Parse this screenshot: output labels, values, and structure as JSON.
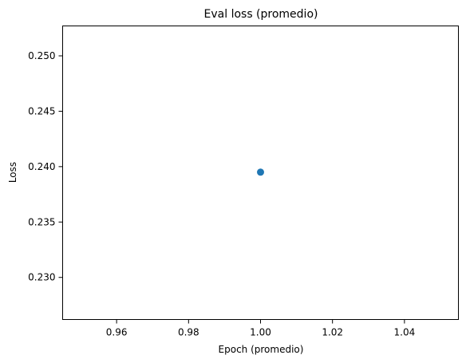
{
  "chart_data": {
    "type": "scatter",
    "title": "Eval loss (promedio)",
    "xlabel": "Epoch (promedio)",
    "ylabel": "Loss",
    "xlim": [
      0.945,
      1.055
    ],
    "ylim": [
      0.2262,
      0.2527
    ],
    "xticks": [
      0.96,
      0.98,
      1.0,
      1.02,
      1.04
    ],
    "xtick_labels": [
      "0.96",
      "0.98",
      "1.00",
      "1.02",
      "1.04"
    ],
    "yticks": [
      0.23,
      0.235,
      0.24,
      0.245,
      0.25
    ],
    "ytick_labels": [
      "0.230",
      "0.235",
      "0.240",
      "0.245",
      "0.250"
    ],
    "grid": false,
    "points": [
      {
        "x": 1.0,
        "y": 0.2395
      }
    ],
    "colors": {
      "marker": "#1f77b4",
      "axis": "#000000",
      "background": "#ffffff"
    }
  }
}
